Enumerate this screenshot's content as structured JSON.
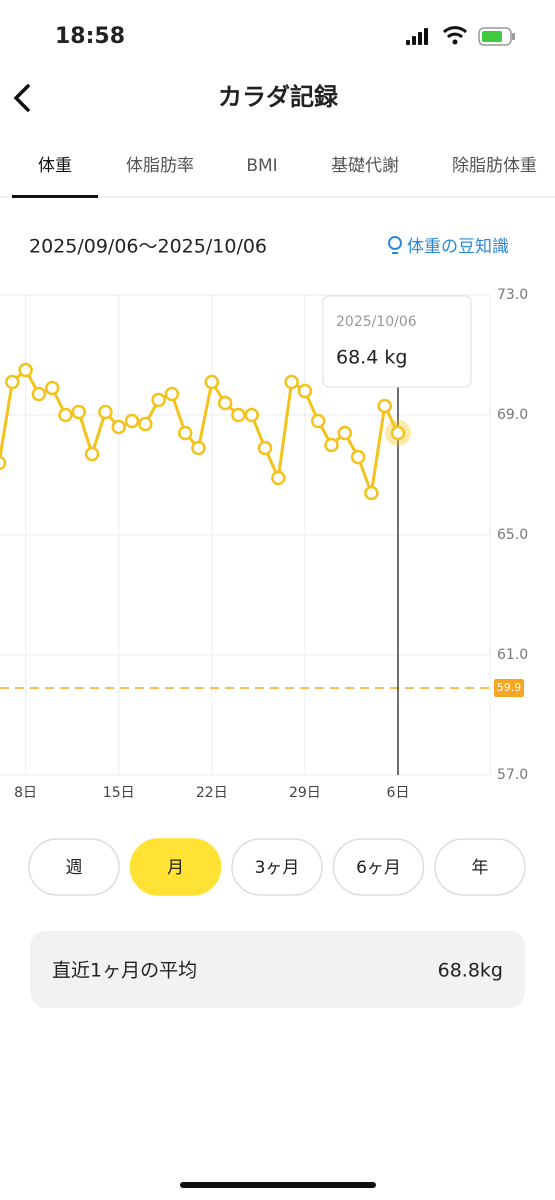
{
  "status_bar": {
    "time": "18:58"
  },
  "header": {
    "title": "カラダ記録"
  },
  "tabs": [
    "体重",
    "体脂肪率",
    "BMI",
    "基礎代謝",
    "除脂肪体重"
  ],
  "active_tab": 0,
  "date_range": "2025/09/06〜2025/10/06",
  "tip_link": "体重の豆知識",
  "chart_data": {
    "type": "line",
    "categories": [
      null,
      null,
      "8日",
      null,
      null,
      null,
      null,
      null,
      null,
      "15日",
      null,
      null,
      null,
      null,
      null,
      null,
      "22日",
      null,
      null,
      null,
      null,
      null,
      null,
      "29日",
      null,
      null,
      null,
      null,
      null,
      null,
      "6日"
    ],
    "series": [
      {
        "color": "#f5c21b",
        "values": [
          67.4,
          70.1,
          70.5,
          69.7,
          69.9,
          69.0,
          69.1,
          67.7,
          69.1,
          68.6,
          68.8,
          68.7,
          69.5,
          69.7,
          68.4,
          67.9,
          70.1,
          69.4,
          69.0,
          69.0,
          67.9,
          66.9,
          70.1,
          69.8,
          68.8,
          68.0,
          68.4,
          67.6,
          66.4,
          69.3,
          68.4
        ]
      }
    ],
    "ylim": [
      57,
      73
    ],
    "yticks": [
      {
        "value": 57,
        "label": "57.0"
      },
      {
        "value": 61,
        "label": "61.0"
      },
      {
        "value": 65,
        "label": "65.0"
      },
      {
        "value": 69,
        "label": "69.0"
      },
      {
        "value": 73,
        "label": "73.0"
      }
    ],
    "grid": true,
    "target": {
      "value": 59.9,
      "label": "59.9",
      "color": "#f5a623"
    },
    "selected": 30,
    "tooltip": {
      "date": "2025/10/06",
      "label": "68.4 kg"
    }
  },
  "period_buttons": [
    "週",
    "月",
    "3ヶ月",
    "6ヶ月",
    "年"
  ],
  "active_period": 1,
  "average": {
    "label": "直近1ヶ月の平均",
    "value": "68.8kg"
  }
}
